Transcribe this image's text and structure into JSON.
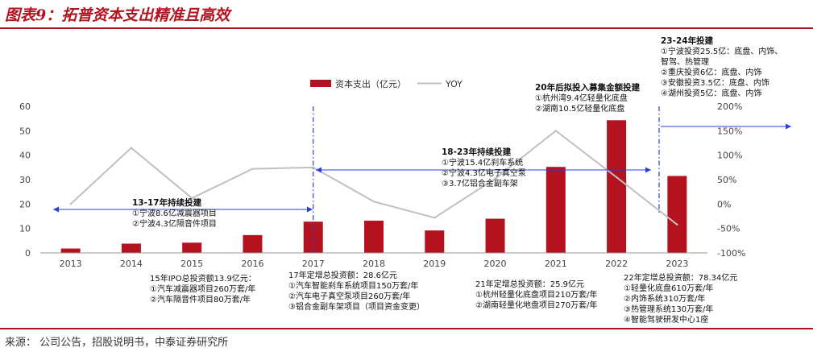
{
  "figure": {
    "title": "图表9：拓普资本支出精准且高效",
    "source": "来源：  公司公告，招股说明书，中泰证券研究所"
  },
  "chart_data": {
    "type": "bar",
    "categories": [
      "2013",
      "2014",
      "2015",
      "2016",
      "2017",
      "2018",
      "2019",
      "2020",
      "2021",
      "2022",
      "2023"
    ],
    "series": [
      {
        "name": "资本支出（亿元）",
        "type": "bar",
        "axis": "left",
        "values": [
          1.8,
          3.8,
          4.2,
          7.3,
          12.8,
          13.2,
          9.2,
          14.0,
          35.2,
          54.3,
          31.5
        ],
        "color": "#b4121f"
      },
      {
        "name": "YOY",
        "type": "line",
        "axis": "right",
        "values": [
          0,
          115,
          12,
          72,
          75,
          5,
          -28,
          52,
          150,
          55,
          -42
        ],
        "color": "#c0c0c0"
      }
    ],
    "y_left": {
      "min": 0,
      "max": 60,
      "ticks": [
        "0",
        "10",
        "20",
        "30",
        "40",
        "50",
        "60"
      ]
    },
    "y_right": {
      "min": -100,
      "max": 200,
      "ticks": [
        "-100%",
        "-50%",
        "0%",
        "50%",
        "100%",
        "150%",
        "200%"
      ]
    },
    "grid": false,
    "legend_position": "top-center",
    "phases": [
      {
        "title": "13-17年持续投建",
        "lines": [
          "①宁波8.6亿减震器项目",
          "②宁波4.3亿隔音件项目"
        ]
      },
      {
        "title": "18-23年持续投建",
        "lines": [
          "①宁波15.4亿刹车系统",
          "②宁波4.3亿电子真空泵",
          "③3.7亿铝合金副车架"
        ]
      },
      {
        "title": "20年后拟投入募集金额投建",
        "lines": [
          "①杭州湾9.4亿轻量化底盘",
          "②湖南10.5亿轻量化底盘"
        ]
      },
      {
        "title": "23-24年投建",
        "lines": [
          "①宁波投资25.5亿：底盘、内饰、",
          "智驾、热管理",
          "②重庆投资6亿：底盘、内饰",
          "③安徽投资3.5亿：底盘、内饰",
          "④湖州投资5亿：底盘、内饰"
        ]
      }
    ],
    "financings": [
      {
        "lines": [
          "15年IPO总投资额13.9亿元：",
          "①汽车减震器项目260万套/年",
          "②汽车隔音件项目80万套/年"
        ]
      },
      {
        "lines": [
          "17年定增总投资额：28.6亿元",
          "①汽车智能刹车系统项目150万套/年",
          "②汽车电子真空泵项目260万套/年",
          "③铝合金副车架项目（项目资金变更）"
        ]
      },
      {
        "lines": [
          "21年定增总投资额：25.9亿元",
          "①杭州轻量化底盘项目210万套/年",
          "②湖南轻量化地盘项目270万套/年"
        ]
      },
      {
        "lines": [
          "22年定增总投资额：78.34亿元",
          "①轻量化底盘610万套/年",
          "②内饰系统310万套/年",
          "③热管理系统130万套/年",
          "④智能驾驶研发中心1座"
        ]
      }
    ]
  }
}
